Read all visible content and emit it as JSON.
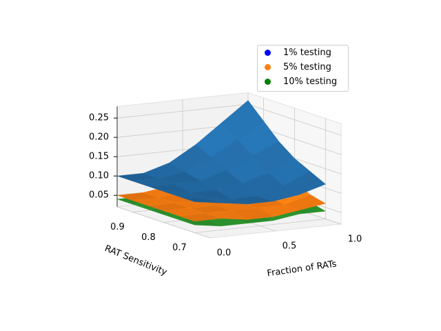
{
  "chart_data": {
    "type": "surface3d",
    "xlabel": "Fraction of RATs",
    "ylabel": "RAT Sensitivity",
    "x": [
      0,
      0.2,
      0.4,
      0.6,
      0.8,
      1.0
    ],
    "y": [
      0.7,
      0.75,
      0.8,
      0.85,
      0.9,
      0.95
    ],
    "xlim": [
      0,
      1
    ],
    "xticks": [
      {
        "value": 0,
        "label": "0.0"
      },
      0.5,
      {
        "value": 1,
        "label": "1.0"
      }
    ],
    "ylim": [
      0.65,
      0.95
    ],
    "yticks": [
      0.7,
      0.8,
      0.9
    ],
    "zlim": [
      0.02,
      0.28
    ],
    "zticks": [
      0.05,
      {
        "value": 0.1,
        "label": "0.10"
      },
      0.15,
      {
        "value": 0.2,
        "label": "0.20"
      },
      0.25
    ],
    "grid": true,
    "legend_loc": "upper right",
    "series": [
      {
        "name": "1% testing",
        "color": "#0000ff",
        "surface_color": "#1f5f93",
        "values": [
          [
            0.1,
            0.09,
            0.08,
            0.08,
            0.09,
            0.11
          ],
          [
            0.1,
            0.09,
            0.08,
            0.08,
            0.1,
            0.13
          ],
          [
            0.1,
            0.09,
            0.09,
            0.1,
            0.12,
            0.15
          ],
          [
            0.1,
            0.1,
            0.1,
            0.12,
            0.15,
            0.18
          ],
          [
            0.1,
            0.1,
            0.11,
            0.14,
            0.18,
            0.22
          ],
          [
            0.1,
            0.1,
            0.12,
            0.16,
            0.21,
            0.26
          ]
        ]
      },
      {
        "name": "5% testing",
        "color": "#ff7f0e",
        "surface_color": "#df7010",
        "values": [
          [
            0.05,
            0.05,
            0.04,
            0.04,
            0.05,
            0.06
          ],
          [
            0.05,
            0.05,
            0.05,
            0.05,
            0.05,
            0.07
          ],
          [
            0.05,
            0.05,
            0.05,
            0.05,
            0.06,
            0.09
          ],
          [
            0.05,
            0.05,
            0.05,
            0.06,
            0.08,
            0.11
          ],
          [
            0.05,
            0.05,
            0.06,
            0.07,
            0.09,
            0.12
          ],
          [
            0.05,
            0.05,
            0.06,
            0.07,
            0.1,
            0.14
          ]
        ]
      },
      {
        "name": "10% testing",
        "color": "#008000",
        "surface_color": "#2a8a2a",
        "values": [
          [
            0.04,
            0.03,
            0.03,
            0.03,
            0.04,
            0.04
          ],
          [
            0.04,
            0.04,
            0.03,
            0.03,
            0.04,
            0.05
          ],
          [
            0.04,
            0.04,
            0.04,
            0.04,
            0.04,
            0.06
          ],
          [
            0.04,
            0.04,
            0.04,
            0.04,
            0.05,
            0.07
          ],
          [
            0.04,
            0.04,
            0.04,
            0.05,
            0.06,
            0.08
          ],
          [
            0.04,
            0.04,
            0.04,
            0.05,
            0.06,
            0.09
          ]
        ]
      }
    ]
  }
}
